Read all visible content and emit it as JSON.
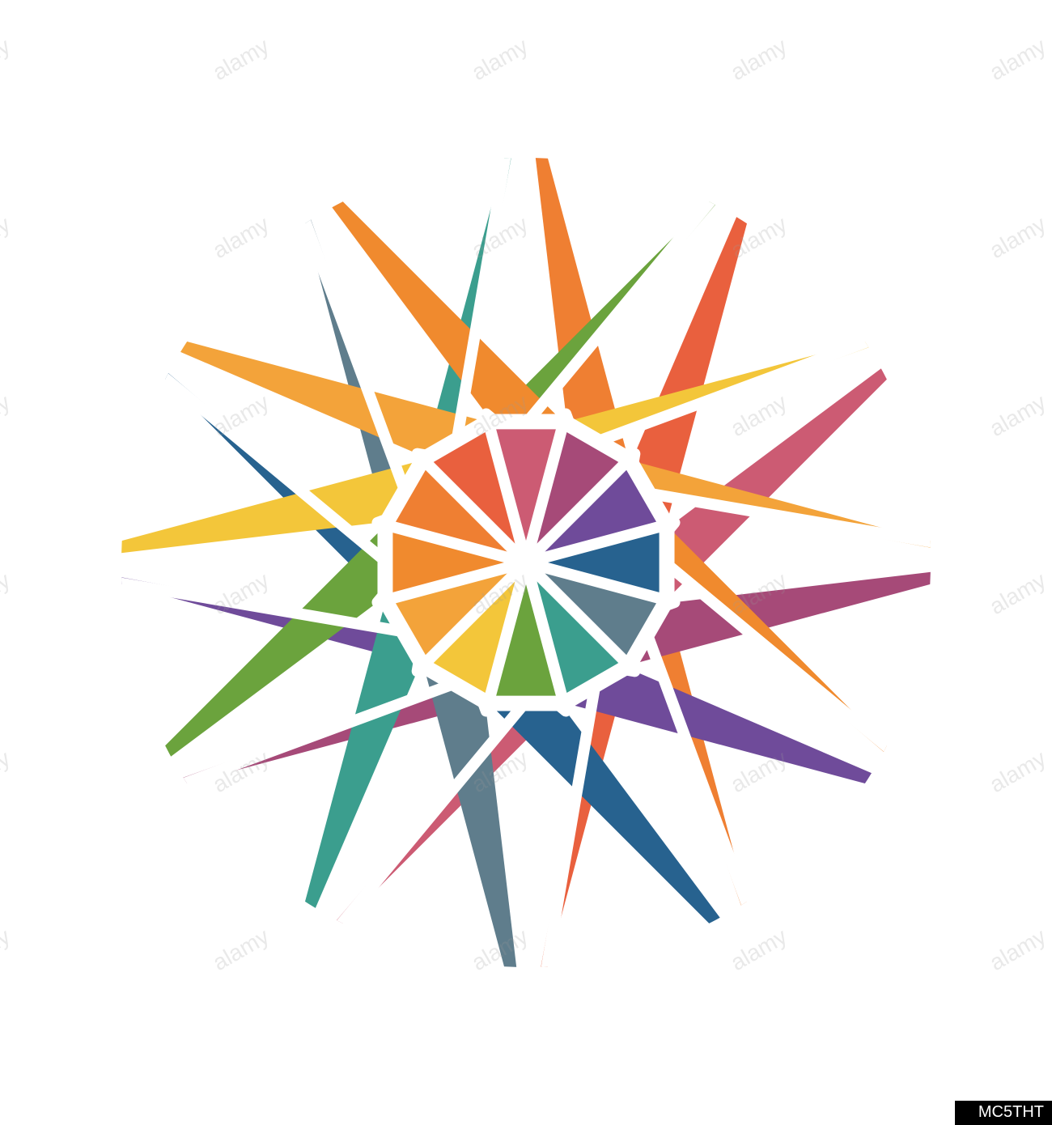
{
  "shutter_icon": {
    "type": "aperture-color-wheel",
    "background_color": "#ffffff",
    "gap_color": "#ffffff",
    "gap_width": 14,
    "blade_count": 12,
    "outer_radius": 500,
    "inner_ring_radius": 190,
    "watermark_text": "alamy",
    "watermark_code": "MC5THT",
    "blades": [
      {
        "name": "orange",
        "color": "#ef7f32"
      },
      {
        "name": "red-orange",
        "color": "#e9603e"
      },
      {
        "name": "rose",
        "color": "#cc5b73"
      },
      {
        "name": "magenta",
        "color": "#a64a78"
      },
      {
        "name": "purple",
        "color": "#6f4b9a"
      },
      {
        "name": "blue",
        "color": "#27628f"
      },
      {
        "name": "slate",
        "color": "#5f7d8c"
      },
      {
        "name": "teal",
        "color": "#3b9e8e"
      },
      {
        "name": "green",
        "color": "#6ba33d"
      },
      {
        "name": "yellow",
        "color": "#f3c63a"
      },
      {
        "name": "amber",
        "color": "#f3a33a"
      },
      {
        "name": "tangerine",
        "color": "#f08a2e"
      }
    ]
  }
}
